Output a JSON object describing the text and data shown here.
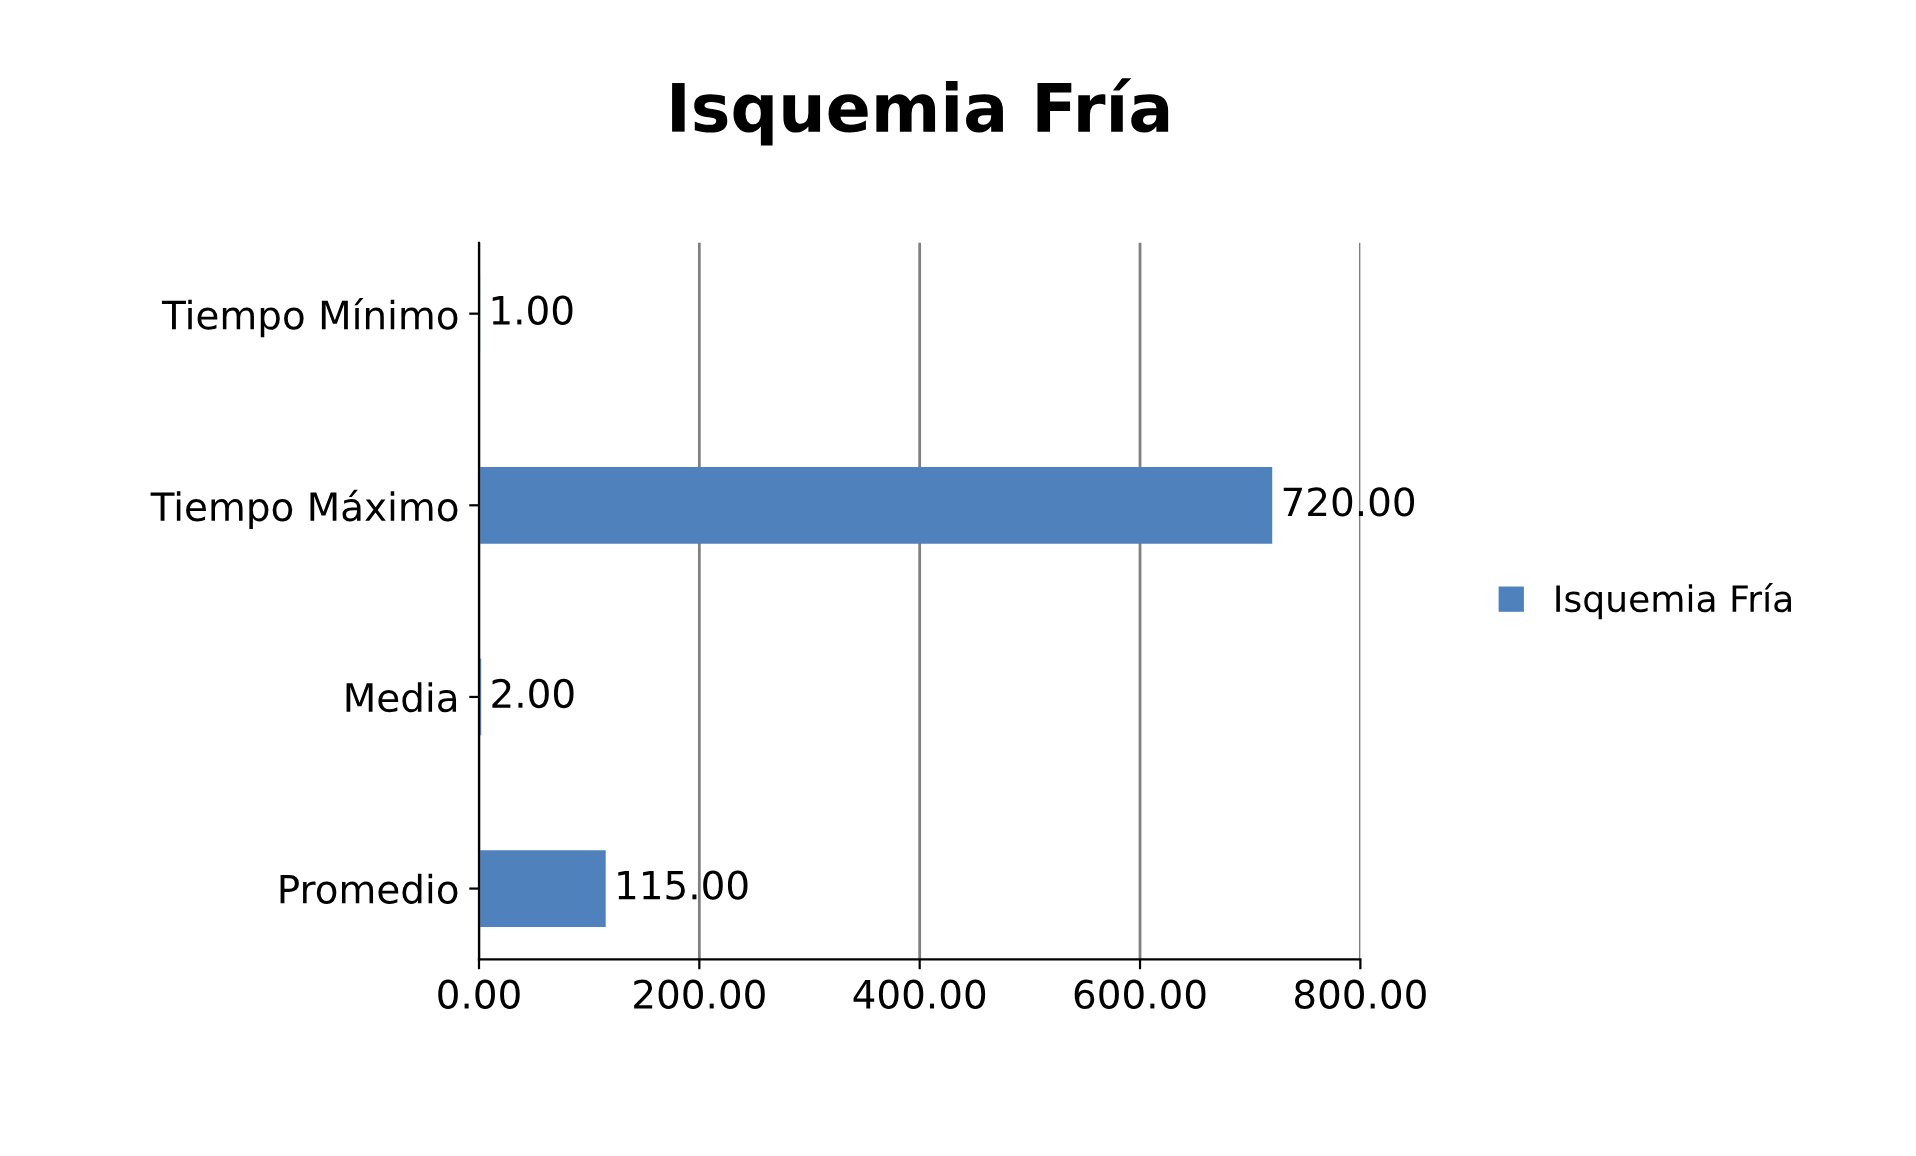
{
  "chart_data": {
    "type": "bar",
    "orientation": "horizontal",
    "title": "Isquemia Fría",
    "categories": [
      "Tiempo Mínimo",
      "Tiempo Máximo",
      "Media",
      "Promedio"
    ],
    "series": [
      {
        "name": "Isquemia Fría",
        "color": "#4f81bd",
        "values": [
          1,
          720,
          2,
          115
        ],
        "value_labels": [
          "1.00",
          "720.00",
          "2.00",
          "115.00"
        ]
      }
    ],
    "xlim": [
      0,
      800
    ],
    "xticks": [
      {
        "value": 0,
        "label": "0.00"
      },
      {
        "value": 200,
        "label": "200.00"
      },
      {
        "value": 400,
        "label": "400.00"
      },
      {
        "value": 600,
        "label": "600.00"
      },
      {
        "value": 800,
        "label": "800.00"
      }
    ],
    "grid": "x",
    "legend": "right"
  }
}
